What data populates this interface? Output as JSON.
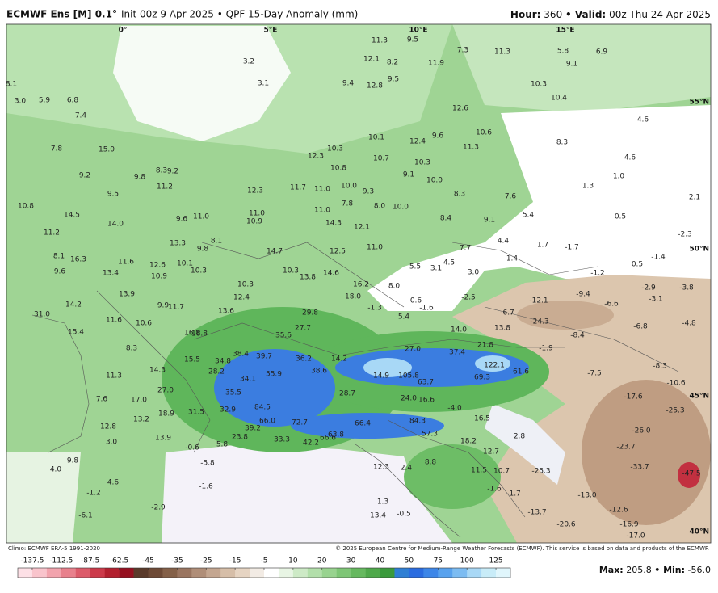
{
  "header": {
    "model": "ECMWF Ens [M] 0.1°",
    "init": "Init 00z 9 Apr 2025 • QPF 15-Day Anomaly (mm)",
    "hour_label": "Hour:",
    "hour": "360",
    "valid_label": "• Valid:",
    "valid": "00z Thu 24 Apr 2025"
  },
  "graticule": [
    "0°",
    "5°E",
    "10°E",
    "15°E",
    "55°N",
    "50°N",
    "45°N",
    "40°N"
  ],
  "map_labels": [
    "3.2",
    "3.1",
    "9.4",
    "11.3",
    "9.5",
    "12.1",
    "8.2",
    "11.9",
    "7.3",
    "11.3",
    "5.8",
    "9.1",
    "6.9",
    "12.8",
    "9.5",
    "10.3",
    "10.4",
    "12.6",
    "10.6",
    "11.3",
    "8.3",
    "4.6",
    "4.6",
    "12.4",
    "9.6",
    "10.1",
    "10.7",
    "10.3",
    "9.1",
    "10.0",
    "8.3",
    "7.6",
    "1.0",
    "1.3",
    "2.1",
    "0.5",
    "5.4",
    "8.4",
    "9.1",
    "-2.3",
    "4.4",
    "1.7",
    "1.4",
    "-1.2",
    "-1.4",
    "12.3",
    "10.3",
    "10.8",
    "10.0",
    "9.3",
    "8.0",
    "10.0",
    "7.8",
    "11.0",
    "14.3",
    "12.1",
    "11.0",
    "12.5",
    "14.6",
    "16.2",
    "8.0",
    "5.5",
    "3.1",
    "4.5",
    "3.0",
    "18.0",
    "-1.3",
    "0.6",
    "-1.6",
    "-2.5",
    "5.4",
    "14.0",
    "13.8",
    "21.8",
    "37.4",
    "27.0",
    "122.1",
    "69.3",
    "61.6",
    "105.8",
    "63.7",
    "14.9",
    "24.0",
    "16.6",
    "28.7",
    "66.4",
    "84.3",
    "57.3",
    "-4.0",
    "16.5",
    "18.2",
    "12.7",
    "2.8",
    "11.5",
    "10.7",
    "-25.3",
    "-1.6",
    "-1.7",
    "-13.0",
    "-13.7",
    "-20.6",
    "-12.6",
    "-16.9",
    "-17.0",
    "-33.7",
    "-47.5",
    "-23.7",
    "-26.0",
    "-25.3",
    "-17.6",
    "-10.6",
    "-8.3",
    "-7.5",
    "-8.4",
    "-1.9",
    "-24.3",
    "-12.1",
    "-9.4",
    "-3.1",
    "-3.8",
    "-2.9",
    "-6.6",
    "-6.8",
    "-4.8",
    "-6.7",
    "35.6",
    "27.7",
    "29.8",
    "38.4",
    "39.7",
    "36.2",
    "14.2",
    "34.8",
    "28.2",
    "55.9",
    "38.6",
    "34.1",
    "35.5",
    "84.5",
    "32.9",
    "66.0",
    "72.7",
    "39.2",
    "33.3",
    "42.2",
    "66.6",
    "63.8",
    "23.8",
    "5.8",
    "-0.6",
    "31.5",
    "18.9",
    "13.2",
    "12.8",
    "13.9",
    "3.0",
    "17.0",
    "27.0",
    "14.3",
    "15.5",
    "18.8",
    "16.8",
    "13.6",
    "12.4",
    "10.3",
    "11.7",
    "9.9",
    "10.6",
    "11.6",
    "8.3",
    "11.3",
    "7.6",
    "9.8",
    "4.0",
    "4.6",
    "-1.2",
    "-2.9",
    "-6.1",
    "-1.6",
    "-5.8",
    "31.0",
    "14.2",
    "15.4",
    "13.4",
    "13.9",
    "11.6",
    "12.6",
    "10.1",
    "10.9",
    "10.3",
    "13.3",
    "9.8",
    "8.1",
    "11.0",
    "9.6",
    "8.3",
    "9.2",
    "11.2",
    "9.8",
    "9.5",
    "15.0",
    "14.5",
    "14.0",
    "10.8",
    "11.2",
    "7.8",
    "9.2",
    "5.9",
    "6.8",
    "3.0",
    "7.4",
    "8.1",
    "9.6",
    "16.3",
    "12.3",
    "11.0",
    "10.9",
    "11.7",
    "11.0",
    "10.3",
    "13.8",
    "14.7",
    "13.4",
    "12.3",
    "2.4",
    "-0.5",
    "1.3",
    "8.8",
    "7.7",
    "-1.7",
    "0.5",
    "8.1"
  ],
  "footer": {
    "climo": "Climo: ECMWF ERA-5 1991-2020",
    "copyright": "© 2025 European Centre for Medium-Range Weather Forecasts (ECMWF). This service is based on data and products of the ECMWF.",
    "max_label": "Max:",
    "max": "205.8",
    "min_label": "• Min:",
    "min": "-56.0"
  },
  "colorbar": {
    "ticks": [
      -137.5,
      -112.5,
      -87.5,
      -62.5,
      -45,
      -35,
      -25,
      -15,
      -5,
      10,
      20,
      30,
      40,
      50,
      75,
      100,
      125
    ],
    "colors": [
      "#fde0e6",
      "#f9c4cc",
      "#f2a3ad",
      "#e8808c",
      "#dc5b6a",
      "#cc3a4a",
      "#b3202f",
      "#961020",
      "#5a3a2a",
      "#6e4a36",
      "#846048",
      "#9a7560",
      "#b08e78",
      "#c4a690",
      "#d6bea8",
      "#e6d4c2",
      "#f2ebe4",
      "#ffffff",
      "#e8f5e4",
      "#cdeac6",
      "#b2dfaa",
      "#98d38f",
      "#7ec676",
      "#66b95f",
      "#4fa94b",
      "#3a9a3c",
      "#2f7fd4",
      "#2a6ce0",
      "#3c86e8",
      "#58a2ee",
      "#7cbcf2",
      "#a8d8f6",
      "#c8ecf8",
      "#e0f6fc"
    ]
  }
}
